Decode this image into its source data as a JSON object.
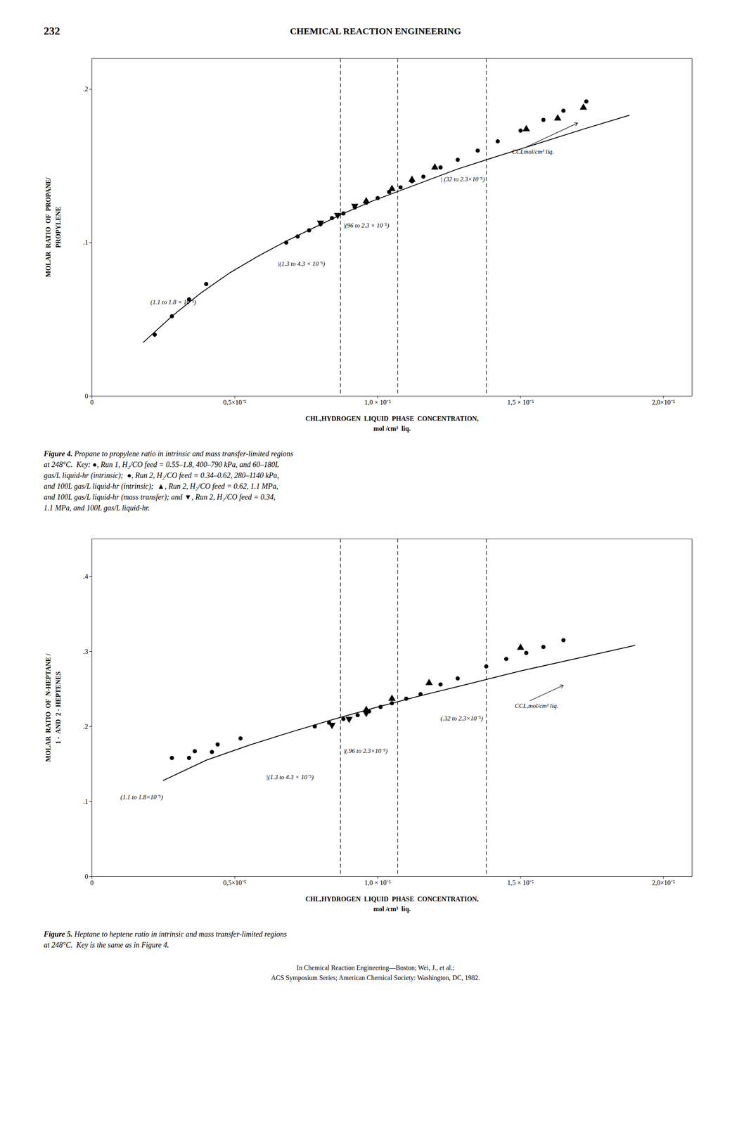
{
  "page_number": "232",
  "header": "CHEMICAL  REACTION  ENGINEERING",
  "footer": [
    "In Chemical Reaction Engineering—Boston; Wei, J., et al.;",
    "ACS Symposium Series; American Chemical Society: Washington, DC, 1982."
  ],
  "chart_data": [
    {
      "type": "scatter",
      "xlabel": "CHL,HYDROGEN  LIQUID  PHASE  CONCENTRATION,\nmol /cm³  liq.",
      "ylabel": "MOLAR  RATIO  OF  PROPANE/\nPROPYLENE",
      "xlim": [
        0,
        2.1e-05
      ],
      "ylim": [
        0,
        0.22
      ],
      "xticks": [
        0,
        {
          "value": 5e-06,
          "label": "0,5×10⁻⁵"
        },
        {
          "value": 1e-05,
          "label": "1,0 × 10⁻⁵"
        },
        {
          "value": 1.5e-05,
          "label": "1,5 × 10⁻⁵"
        },
        {
          "value": 2e-05,
          "label": "2,0×10⁻⁵"
        }
      ],
      "yticks": [
        0,
        {
          "value": 0.1,
          "label": ".1"
        },
        {
          "value": 0.2,
          "label": ".2"
        }
      ],
      "series": [
        {
          "type": "line",
          "color": "black",
          "line_style": "solid",
          "x": [
            1.8e-06,
            2.8e-06,
            3.8e-06,
            4.8e-06,
            5.8e-06,
            6.8e-06,
            7.8e-06,
            8.8e-06,
            9.8e-06,
            1.08e-05,
            1.18e-05,
            1.28e-05,
            1.38e-05,
            1.55e-05,
            1.72e-05,
            1.88e-05
          ],
          "values": [
            0.035,
            0.052,
            0.067,
            0.08,
            0.091,
            0.101,
            0.11,
            0.119,
            0.127,
            0.134,
            0.141,
            0.148,
            0.154,
            0.164,
            0.174,
            0.183
          ]
        },
        {
          "type": "scatter",
          "color": "black",
          "marker": "circle",
          "x": [
            2.2e-06,
            2.8e-06,
            3.4e-06,
            4e-06
          ],
          "values": [
            0.04,
            0.052,
            0.063,
            0.073
          ]
        },
        {
          "type": "scatter",
          "color": "black",
          "marker": "circle",
          "x": [
            6.8e-06,
            7.2e-06,
            7.6e-06,
            8e-06,
            8.4e-06,
            8.8e-06,
            9.2e-06,
            9.6e-06,
            1e-05,
            1.04e-05,
            1.08e-05,
            1.12e-05,
            1.16e-05,
            1.22e-05,
            1.28e-05,
            1.35e-05,
            1.42e-05,
            1.5e-05,
            1.58e-05,
            1.65e-05,
            1.73e-05
          ],
          "values": [
            0.1,
            0.104,
            0.108,
            0.112,
            0.116,
            0.119,
            0.123,
            0.126,
            0.129,
            0.133,
            0.136,
            0.14,
            0.143,
            0.149,
            0.154,
            0.16,
            0.166,
            0.173,
            0.18,
            0.186,
            0.192
          ]
        },
        {
          "type": "scatter",
          "color": "black",
          "marker": "triangle-up",
          "x": [
            9.6e-06,
            1.05e-05,
            1.12e-05,
            1.2e-05,
            1.52e-05,
            1.63e-05,
            1.72e-05
          ],
          "values": [
            0.127,
            0.135,
            0.141,
            0.149,
            0.174,
            0.181,
            0.188
          ]
        },
        {
          "type": "scatter",
          "color": "black",
          "marker": "triangle-down",
          "x": [
            8e-06,
            8.6e-06,
            9.2e-06
          ],
          "values": [
            0.113,
            0.118,
            0.124
          ]
        },
        {
          "type": "vline",
          "color": "black",
          "line_style": "dashed",
          "x": [
            8.7e-06,
            1.07e-05,
            1.38e-05
          ]
        }
      ],
      "annotations": [
        {
          "text": "(1.1 to 1.8 × 10⁻⁵)",
          "x": 2.05e-06,
          "y": 0.06
        },
        {
          "text": "|(1.3 to 4.3 × 10⁻⁵)",
          "x": 6.5e-06,
          "y": 0.085
        },
        {
          "text": "|(96 to 2.3 × 10⁻⁵)",
          "x": 8.8e-06,
          "y": 0.11
        },
        {
          "text": "| (32 to 2.3×10⁻⁵)",
          "x": 1.22e-05,
          "y": 0.14
        },
        {
          "text": "CCLmol/cm³ liq.",
          "x": 1.47e-05,
          "y": 0.158,
          "arrow_to": [
            1.7e-05,
            0.178
          ]
        }
      ],
      "caption_label": "Figure 4.",
      "caption": [
        "Propane to propylene ratio in intrinsic and mass transfer-limited regions",
        "at 248°C.  Key: ●, Run 1, H₂/CO feed = 0.55–1.8, 400–790 kPa, and 60–180L",
        "gas/L liquid-hr (intrinsic);  ●, Run 2, H₂/CO feed = 0.34–0.62, 280–1140 kPa,",
        "and 100L gas/L liquid-hr (intrinsic);  ▲, Run 2, H₂/CO feed = 0.62, 1.1 MPa,",
        "and 100L gas/L liquid-hr (mass transfer); and ▼, Run 2, H₂/CO feed = 0.34,",
        "1.1 MPa, and 100L gas/L liquid-hr."
      ]
    },
    {
      "type": "scatter",
      "xlabel": "CHL,HYDROGEN  LIQUID  PHASE  CONCENTRATION,\nmol /cm³  liq.",
      "ylabel": "MOLAR  RATIO  OF  N-HEPTANE /\n1 -  AND  2 - HEPTENES",
      "xlim": [
        0,
        2.1e-05
      ],
      "ylim": [
        0,
        0.45
      ],
      "xticks": [
        0,
        {
          "value": 5e-06,
          "label": "0,5×10⁻⁵"
        },
        {
          "value": 1e-05,
          "label": "1,0 × 10⁻⁵"
        },
        {
          "value": 1.5e-05,
          "label": "1,5 × 10⁻⁵"
        },
        {
          "value": 2e-05,
          "label": "2,0×10⁻⁵"
        }
      ],
      "yticks": [
        0,
        {
          "value": 0.1,
          "label": ".1"
        },
        {
          "value": 0.2,
          "label": ".2"
        },
        {
          "value": 0.3,
          "label": ".3"
        },
        {
          "value": 0.4,
          "label": ".4"
        }
      ],
      "series": [
        {
          "type": "line",
          "color": "black",
          "line_style": "solid",
          "x": [
            2.5e-06,
            4e-06,
            5.5e-06,
            7e-06,
            8.5e-06,
            1e-05,
            1.15e-05,
            1.3e-05,
            1.5e-05,
            1.7e-05,
            1.9e-05
          ],
          "values": [
            0.128,
            0.155,
            0.175,
            0.193,
            0.21,
            0.226,
            0.241,
            0.255,
            0.274,
            0.291,
            0.308
          ]
        },
        {
          "type": "scatter",
          "color": "black",
          "marker": "circle",
          "x": [
            2.8e-06,
            3.6e-06,
            4.4e-06,
            5.2e-06
          ],
          "values": [
            0.158,
            0.167,
            0.176,
            0.184
          ]
        },
        {
          "type": "scatter",
          "color": "black",
          "marker": "circle",
          "x": [
            3.4e-06,
            4.2e-06,
            7.8e-06,
            8.3e-06,
            8.8e-06,
            9.3e-06,
            9.7e-06,
            1.01e-05,
            1.05e-05,
            1.1e-05,
            1.15e-05,
            1.22e-05,
            1.28e-05,
            1.38e-05,
            1.45e-05,
            1.52e-05,
            1.58e-05,
            1.65e-05
          ],
          "values": [
            0.158,
            0.166,
            0.2,
            0.205,
            0.21,
            0.215,
            0.22,
            0.226,
            0.231,
            0.237,
            0.243,
            0.256,
            0.264,
            0.28,
            0.29,
            0.298,
            0.306,
            0.315
          ]
        },
        {
          "type": "scatter",
          "color": "black",
          "marker": "triangle-up",
          "x": [
            9.6e-06,
            1.05e-05,
            1.18e-05,
            1.5e-05
          ],
          "values": [
            0.222,
            0.237,
            0.258,
            0.305
          ]
        },
        {
          "type": "scatter",
          "color": "black",
          "marker": "triangle-down",
          "x": [
            8.4e-06,
            9e-06,
            9.6e-06
          ],
          "values": [
            0.202,
            0.21,
            0.218
          ]
        },
        {
          "type": "vline",
          "color": "black",
          "line_style": "dashed",
          "x": [
            8.7e-06,
            1.07e-05,
            1.38e-05
          ]
        }
      ],
      "annotations": [
        {
          "text": "(1.1 to 1.8×10⁻⁵)",
          "x": 1e-06,
          "y": 0.103
        },
        {
          "text": "|(1.3 to 4.3 × 10⁻⁵)",
          "x": 6.1e-06,
          "y": 0.13
        },
        {
          "text": "|(.96 to 2.3×10⁻⁵)",
          "x": 8.8e-06,
          "y": 0.165
        },
        {
          "text": "(.32 to 2.3×10⁻⁵)",
          "x": 1.22e-05,
          "y": 0.208
        },
        {
          "text": "CCL,mol/cm³ liq.",
          "x": 1.48e-05,
          "y": 0.225,
          "arrow_to": [
            1.65e-05,
            0.255
          ]
        }
      ],
      "caption_label": "Figure 5.",
      "caption": [
        "Heptane to heptene ratio in intrinsic and mass transfer-limited regions",
        "at 248°C.  Key is the same as in Figure 4."
      ]
    }
  ]
}
